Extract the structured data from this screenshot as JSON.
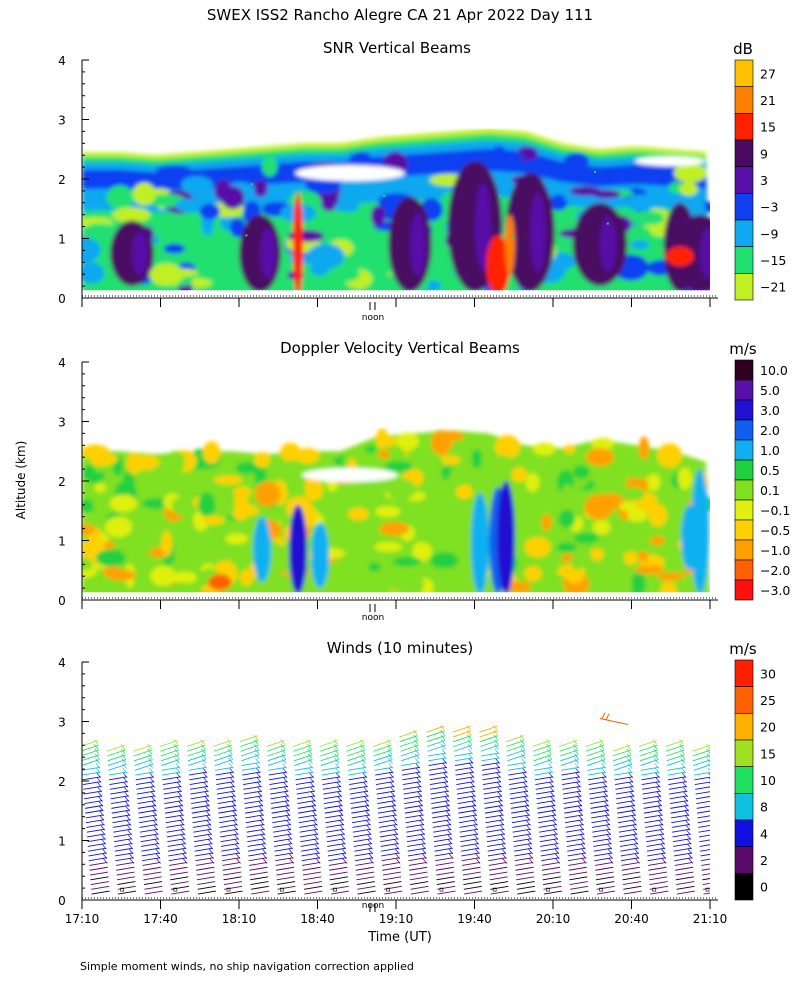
{
  "figure": {
    "title": "SWEX ISS2 Rancho Alegre CA  21 Apr 2022 Day 111",
    "y_axis_label": "Altitude (km)",
    "x_axis_label": "Time (UT)",
    "noon_label": "noon",
    "footnote": "Simple moment winds, no ship navigation correction applied"
  },
  "chart_data": [
    {
      "type": "heatmap",
      "title": "SNR Vertical Beams",
      "ylim": [
        0,
        4
      ],
      "y_ticks": [
        "0",
        "1",
        "2",
        "3",
        "4"
      ],
      "x_ticks": [
        "17:10",
        "17:40",
        "18:10",
        "18:40",
        "19:10",
        "19:40",
        "20:10",
        "20:40",
        "21:10"
      ],
      "colorbar_unit": "dB",
      "colorbar_labels": [
        "27",
        "21",
        "15",
        "9",
        "3",
        "−3",
        "−9",
        "−15",
        "−21"
      ],
      "colorbar_colors": [
        "#ffc000",
        "#ff8000",
        "#ff2000",
        "#4a0a62",
        "#5810a8",
        "#1040f0",
        "#10a8f0",
        "#20e070",
        "#c0f020"
      ],
      "signal_top_km": [
        2.45,
        2.45,
        2.4,
        2.45,
        2.5,
        2.55,
        2.6,
        2.6,
        2.7,
        2.75,
        2.8,
        2.85,
        2.8,
        2.6,
        2.5,
        2.55,
        2.5,
        2.45
      ]
    },
    {
      "type": "heatmap",
      "title": "Doppler Velocity Vertical Beams",
      "ylim": [
        0,
        4
      ],
      "y_ticks": [
        "0",
        "1",
        "2",
        "3",
        "4"
      ],
      "colorbar_unit": "m/s",
      "colorbar_labels": [
        "10.0",
        "5.0",
        "3.0",
        "2.0",
        "1.0",
        "0.5",
        "0.1",
        "−0.1",
        "−0.5",
        "−1.0",
        "−2.0",
        "−3.0"
      ],
      "colorbar_colors": [
        "#300020",
        "#5810a8",
        "#2010d0",
        "#1060f0",
        "#10b0f0",
        "#20d040",
        "#80e020",
        "#e0f010",
        "#ffd000",
        "#ffa000",
        "#ff6000",
        "#ff1010"
      ],
      "signal_top_km": [
        2.5,
        2.5,
        2.45,
        2.5,
        2.5,
        2.45,
        2.5,
        2.5,
        2.75,
        2.8,
        2.85,
        2.8,
        2.6,
        2.55,
        2.7,
        2.6,
        2.5,
        2.3
      ]
    },
    {
      "type": "scatter",
      "title": "Winds (10 minutes)",
      "ylim": [
        0,
        4
      ],
      "y_ticks": [
        "0",
        "1",
        "2",
        "3",
        "4"
      ],
      "x_ticks": [
        "17:10",
        "17:40",
        "18:10",
        "18:40",
        "19:10",
        "19:40",
        "20:10",
        "20:40",
        "21:10"
      ],
      "colorbar_unit": "m/s",
      "colorbar_labels": [
        "30",
        "25",
        "20",
        "15",
        "10",
        "8",
        "4",
        "2",
        "0"
      ],
      "colorbar_colors": [
        "#ff2000",
        "#ff6000",
        "#ffb000",
        "#a0e020",
        "#20e060",
        "#10c0e0",
        "#1010e0",
        "#5a0a6a",
        "#000000"
      ],
      "wind_profile_tops_km": [
        2.6,
        2.55,
        2.55,
        2.6,
        2.65,
        2.65,
        2.7,
        2.65,
        2.6,
        2.6,
        2.6,
        2.65,
        2.75,
        2.9,
        2.85,
        2.85,
        2.7,
        2.6,
        2.65,
        2.6,
        2.55,
        2.6,
        2.6,
        2.55
      ]
    }
  ]
}
